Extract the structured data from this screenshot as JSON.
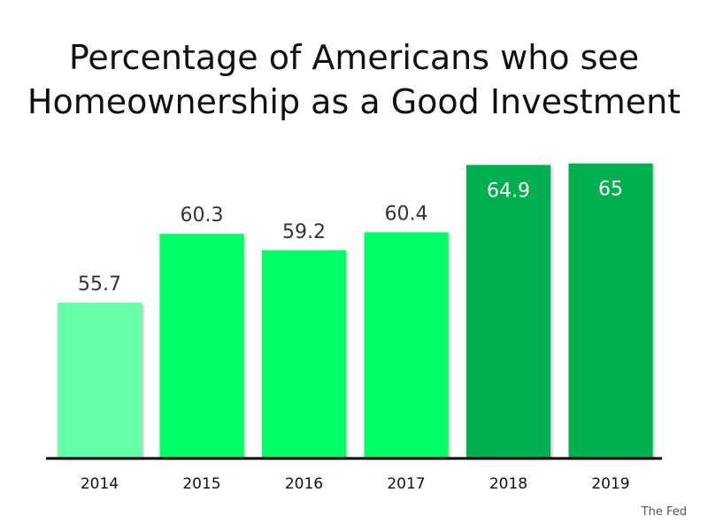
{
  "chart_data": {
    "type": "bar",
    "title_lines": [
      "Percentage of Americans who see",
      "Homeownership as a Good Investment"
    ],
    "categories": [
      "2014",
      "2015",
      "2016",
      "2017",
      "2018",
      "2019"
    ],
    "values": [
      55.7,
      60.3,
      59.2,
      60.4,
      64.9,
      65
    ],
    "value_labels": [
      "55.7",
      "60.3",
      "59.2",
      "60.4",
      "64.9",
      "65"
    ],
    "bar_colors": [
      "#66ffaa",
      "#00ff66",
      "#00ff66",
      "#00ff66",
      "#00b050",
      "#00b050"
    ],
    "label_colors": [
      "#333333",
      "#333333",
      "#333333",
      "#333333",
      "#ffffff",
      "#ffffff"
    ],
    "label_inside": [
      false,
      false,
      false,
      false,
      true,
      true
    ],
    "ylim": [
      45.3,
      65.1
    ],
    "grid": false,
    "legend": "none"
  },
  "source": "The Fed"
}
